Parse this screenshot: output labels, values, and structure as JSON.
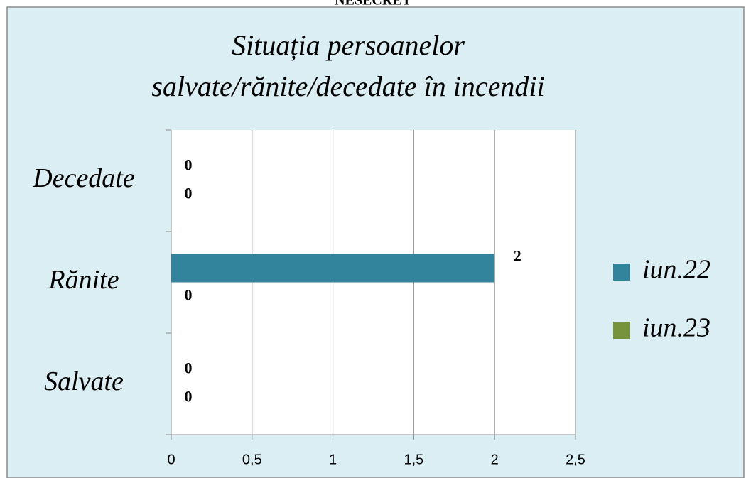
{
  "header": "NESECRET",
  "chart_data": {
    "type": "hbar",
    "title": "Situația persoanelor salvate/rănite/decedate în incendii",
    "categories": [
      "Decedate",
      "Rănite",
      "Salvate"
    ],
    "series": [
      {
        "name": "iun.22",
        "color": "#31849b",
        "values": [
          0,
          2,
          0
        ]
      },
      {
        "name": "iun.23",
        "color": "#77933c",
        "values": [
          0,
          0,
          0
        ]
      }
    ],
    "xlim": [
      0,
      2.5
    ],
    "xticks": [
      0,
      {
        "value": 0.5,
        "label": "0,5"
      },
      1,
      {
        "value": 1.5,
        "label": "1,5"
      },
      2,
      {
        "value": 2.5,
        "label": "2,5"
      }
    ],
    "grid": true,
    "legend": "right"
  }
}
